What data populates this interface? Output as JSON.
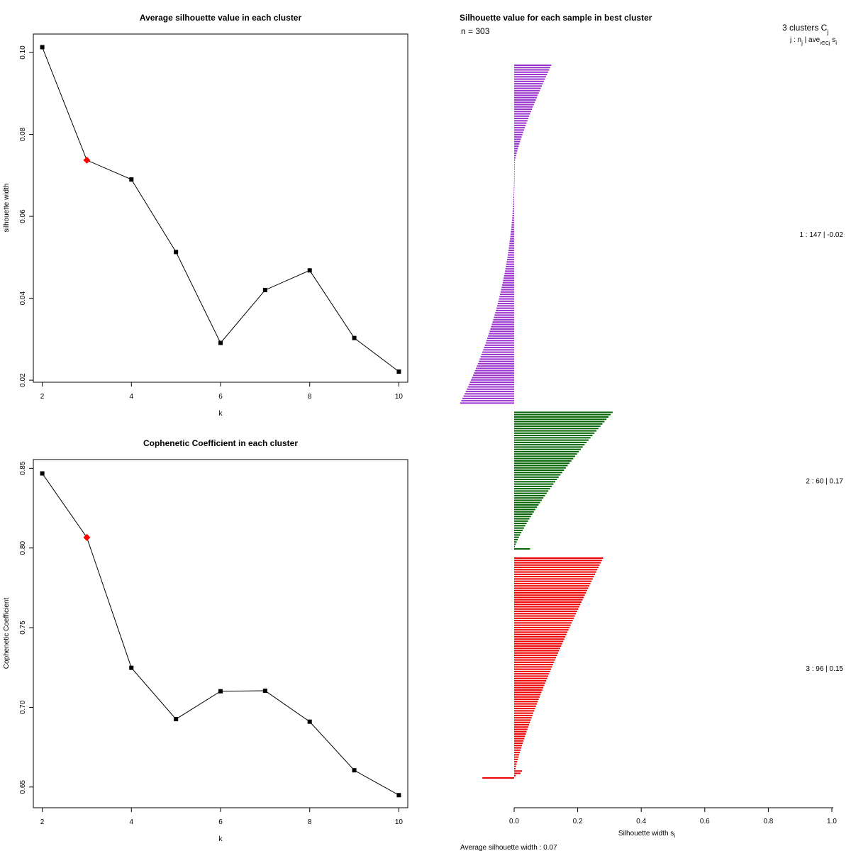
{
  "chart_data": [
    {
      "type": "line",
      "title": "Average silhouette value in each cluster",
      "xlabel": "k",
      "ylabel": "silhouette width",
      "x": [
        2,
        3,
        4,
        5,
        6,
        7,
        8,
        9,
        10
      ],
      "values": [
        0.1013,
        0.0737,
        0.069,
        0.0513,
        0.0291,
        0.042,
        0.0468,
        0.0303,
        0.0221
      ],
      "highlight": {
        "x": 3,
        "value": 0.0737,
        "color": "#ff0000"
      },
      "xlim": [
        1.8,
        10.2
      ],
      "ylim": [
        0.0195,
        0.1045
      ],
      "xticks": [
        2,
        4,
        6,
        8,
        10
      ],
      "yticks": [
        0.02,
        0.04,
        0.06,
        0.08,
        0.1
      ],
      "xtick_labels": [
        "2",
        "4",
        "6",
        "8",
        "10"
      ],
      "ytick_labels": [
        "0.02",
        "0.04",
        "0.06",
        "0.08",
        "0.10"
      ]
    },
    {
      "type": "line",
      "title": "Cophenetic Coefficient in each cluster",
      "xlabel": "k",
      "ylabel": "Cophenetic Coefficient",
      "x": [
        2,
        3,
        4,
        5,
        6,
        7,
        8,
        9,
        10
      ],
      "values": [
        0.8468,
        0.8066,
        0.7248,
        0.6926,
        0.7101,
        0.7104,
        0.691,
        0.6605,
        0.6449
      ],
      "highlight": {
        "x": 3,
        "value": 0.8066,
        "color": "#ff0000"
      },
      "xlim": [
        1.8,
        10.2
      ],
      "ylim": [
        0.637,
        0.8555
      ],
      "xticks": [
        2,
        4,
        6,
        8,
        10
      ],
      "yticks": [
        0.65,
        0.7,
        0.75,
        0.8,
        0.85
      ],
      "xtick_labels": [
        "2",
        "4",
        "6",
        "8",
        "10"
      ],
      "ytick_labels": [
        "0.65",
        "0.70",
        "0.75",
        "0.80",
        "0.85"
      ]
    },
    {
      "type": "bar",
      "orientation": "horizontal",
      "title": "Silhouette value for each sample in best cluster",
      "n_label": "n = 303",
      "xlabel_main": "Silhouette width s",
      "xlabel_sub": "i",
      "xlim": [
        0,
        1
      ],
      "xticks": [
        0,
        0.2,
        0.4,
        0.6,
        0.8,
        1.0
      ],
      "xtick_labels": [
        "0.0",
        "0.2",
        "0.4",
        "0.6",
        "0.8",
        "1.0"
      ],
      "legend_header": {
        "line1_main": "3  clusters  C",
        "line1_sub": "j",
        "line2_main": "j :  n",
        "line2_sub": "j",
        "line2_rest": " | ave",
        "line2_sub2": "i∈Cj",
        "line2_end": " s",
        "line2_sub3": "i"
      },
      "avg_label": "Average silhouette width :  0.07",
      "clusters": [
        {
          "id": 1,
          "n": 147,
          "ave": -0.02,
          "label": "1 :   147  |  -0.02",
          "color": "#9a32cd",
          "pos_count": 43,
          "max": 0.115,
          "min": -0.17
        },
        {
          "id": 2,
          "n": 60,
          "ave": 0.17,
          "label": "2 :   60  |  0.17",
          "color": "#006400",
          "pos_count": 60,
          "max": 0.29,
          "min": 0.05
        },
        {
          "id": 3,
          "n": 96,
          "ave": 0.15,
          "label": "3 :   96  |  0.15",
          "color": "#ee0000",
          "pos_count": 95,
          "max": 0.26,
          "min": -0.1
        }
      ]
    }
  ]
}
